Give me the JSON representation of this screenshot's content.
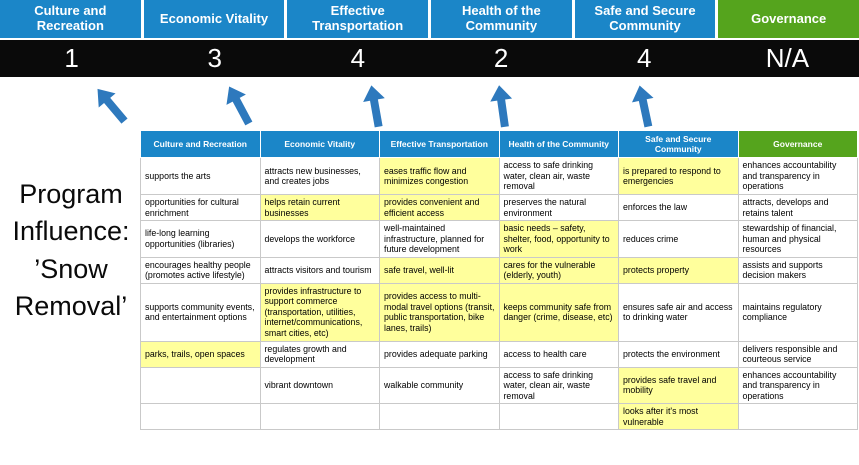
{
  "program": {
    "title": "Program Influence: ’Snow Removal’"
  },
  "colors": {
    "blue": "#1b86c8",
    "green": "#55a41d",
    "highlight": "#ffff9c",
    "arrow": "#2e79bd",
    "score_band": "#0a0a0a"
  },
  "scoreboard": {
    "columns": [
      {
        "label": "Culture and Recreation",
        "score": "1",
        "theme": "blue"
      },
      {
        "label": "Economic Vitality",
        "score": "3",
        "theme": "blue"
      },
      {
        "label": "Effective Transportation",
        "score": "4",
        "theme": "blue"
      },
      {
        "label": "Health of the Community",
        "score": "2",
        "theme": "blue"
      },
      {
        "label": "Safe and Secure Community",
        "score": "4",
        "theme": "blue"
      },
      {
        "label": "Governance",
        "score": "N/A",
        "theme": "green"
      }
    ]
  },
  "matrix": {
    "headers": [
      {
        "label": "Culture and Recreation",
        "theme": "blue"
      },
      {
        "label": "Economic Vitality",
        "theme": "blue"
      },
      {
        "label": "Effective Transportation",
        "theme": "blue"
      },
      {
        "label": "Health of the Community",
        "theme": "blue"
      },
      {
        "label": "Safe and Secure Community",
        "theme": "blue"
      },
      {
        "label": "Governance",
        "theme": "green"
      }
    ],
    "rows": [
      [
        {
          "text": "supports the arts",
          "highlight": false
        },
        {
          "text": "attracts new businesses, and creates jobs",
          "highlight": false
        },
        {
          "text": "eases traffic flow and minimizes congestion",
          "highlight": true
        },
        {
          "text": "access to safe drinking water, clean air, waste removal",
          "highlight": false
        },
        {
          "text": "is prepared to respond to emergencies",
          "highlight": true
        },
        {
          "text": "enhances accountability and transparency in operations",
          "highlight": false
        }
      ],
      [
        {
          "text": "opportunities for cultural enrichment",
          "highlight": false
        },
        {
          "text": "helps retain current businesses",
          "highlight": true
        },
        {
          "text": "provides convenient and efficient access",
          "highlight": true
        },
        {
          "text": "preserves the natural environment",
          "highlight": false
        },
        {
          "text": "enforces the law",
          "highlight": false
        },
        {
          "text": "attracts, develops and retains talent",
          "highlight": false
        }
      ],
      [
        {
          "text": "life-long learning opportunities (libraries)",
          "highlight": false
        },
        {
          "text": "develops the workforce",
          "highlight": false
        },
        {
          "text": "well-maintained infrastructure, planned for future development",
          "highlight": false
        },
        {
          "text": "basic needs – safety, shelter, food, opportunity to work",
          "highlight": true
        },
        {
          "text": "reduces crime",
          "highlight": false
        },
        {
          "text": "stewardship of financial, human and physical resources",
          "highlight": false
        }
      ],
      [
        {
          "text": "encourages healthy people (promotes active lifestyle)",
          "highlight": false
        },
        {
          "text": "attracts visitors and tourism",
          "highlight": false
        },
        {
          "text": "safe travel, well-lit",
          "highlight": true
        },
        {
          "text": "cares for the vulnerable (elderly, youth)",
          "highlight": true
        },
        {
          "text": "protects property",
          "highlight": true
        },
        {
          "text": "assists and supports decision makers",
          "highlight": false
        }
      ],
      [
        {
          "text": "supports community events, and entertainment options",
          "highlight": false
        },
        {
          "text": "provides infrastructure to support commerce (transportation, utilities, internet/communications, smart cities, etc)",
          "highlight": true
        },
        {
          "text": "provides access to multi-modal travel options (transit, public transportation, bike lanes, trails)",
          "highlight": true
        },
        {
          "text": "keeps community safe from danger (crime, disease, etc)",
          "highlight": true
        },
        {
          "text": "ensures safe air and access to drinking water",
          "highlight": false
        },
        {
          "text": "maintains regulatory compliance",
          "highlight": false
        }
      ],
      [
        {
          "text": "parks, trails, open spaces",
          "highlight": true
        },
        {
          "text": "regulates growth and development",
          "highlight": false
        },
        {
          "text": "provides adequate parking",
          "highlight": false
        },
        {
          "text": "access to health care",
          "highlight": false
        },
        {
          "text": "protects the environment",
          "highlight": false
        },
        {
          "text": "delivers responsible and courteous service",
          "highlight": false
        }
      ],
      [
        {
          "text": "",
          "highlight": false
        },
        {
          "text": "vibrant downtown",
          "highlight": false
        },
        {
          "text": "walkable community",
          "highlight": false
        },
        {
          "text": "access to safe drinking water, clean air, waste removal",
          "highlight": false
        },
        {
          "text": "provides safe travel and mobility",
          "highlight": true
        },
        {
          "text": "enhances accountability and transparency in operations",
          "highlight": false
        }
      ],
      [
        {
          "text": "",
          "highlight": false
        },
        {
          "text": "",
          "highlight": false
        },
        {
          "text": "",
          "highlight": false
        },
        {
          "text": "",
          "highlight": false
        },
        {
          "text": "looks after it's most vulnerable",
          "highlight": true
        },
        {
          "text": "",
          "highlight": false
        }
      ]
    ]
  }
}
